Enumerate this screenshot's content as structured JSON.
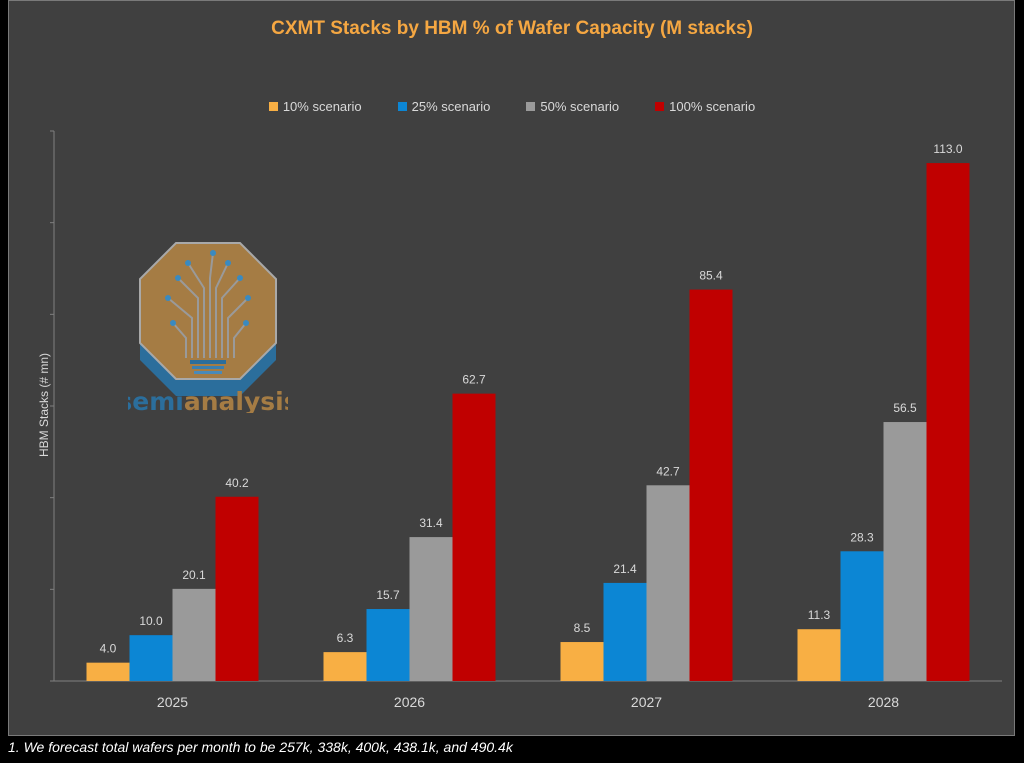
{
  "chart_data": {
    "type": "bar",
    "title": "CXMT Stacks by HBM % of Wafer Capacity (M stacks)",
    "xlabel": "",
    "ylabel": "HBM Stacks (# mn)",
    "ylim": [
      0,
      120
    ],
    "legend_position": "top",
    "categories": [
      "2025",
      "2026",
      "2027",
      "2028"
    ],
    "series": [
      {
        "name": "10% scenario",
        "color": "#F8AF44",
        "values": [
          4.0,
          6.3,
          8.5,
          11.3
        ],
        "labels": [
          "4.0",
          "6.3",
          "8.5",
          "11.3"
        ]
      },
      {
        "name": "25% scenario",
        "color": "#0C86D4",
        "values": [
          10.0,
          15.7,
          21.4,
          28.3
        ],
        "labels": [
          "10.0",
          "15.7",
          "21.4",
          "28.3"
        ]
      },
      {
        "name": "50% scenario",
        "color": "#9A9A9A",
        "values": [
          20.1,
          31.4,
          42.7,
          56.5
        ],
        "labels": [
          "20.1",
          "31.4",
          "42.7",
          "56.5"
        ]
      },
      {
        "name": "100% scenario",
        "color": "#C00000",
        "values": [
          40.2,
          62.7,
          85.4,
          113.0
        ],
        "labels": [
          "40.2",
          "62.7",
          "85.4",
          "113.0"
        ]
      }
    ]
  },
  "logo": {
    "text_part1": "semi",
    "text_part2": "analysis"
  },
  "footnote": "1. We forecast total wafers per month to be 257k, 338k, 400k, 438.1k, and 490.4k"
}
